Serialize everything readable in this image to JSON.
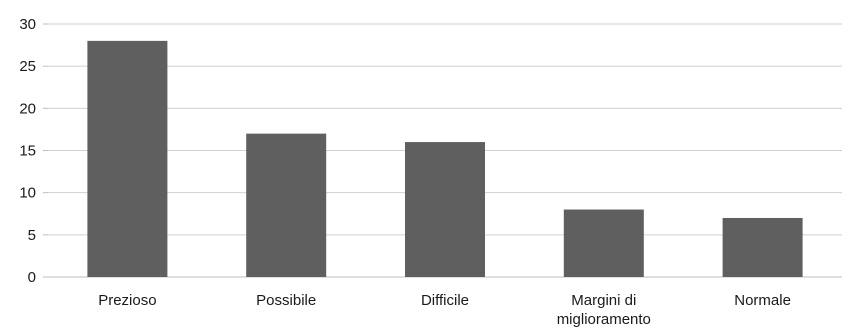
{
  "chart_data": {
    "type": "bar",
    "categories": [
      "Prezioso",
      "Possibile",
      "Difficile",
      "Margini di miglioramento",
      "Normale"
    ],
    "category_label_lines": [
      [
        "Prezioso"
      ],
      [
        "Possibile"
      ],
      [
        "Difficile"
      ],
      [
        "Margini di",
        "miglioramento"
      ],
      [
        "Normale"
      ]
    ],
    "values": [
      28,
      17,
      16,
      8,
      7
    ],
    "title": "",
    "xlabel": "",
    "ylabel": "",
    "ylim": [
      0,
      30
    ],
    "yticks": [
      0,
      5,
      10,
      15,
      20,
      25,
      30
    ],
    "grid": true,
    "legend": "none",
    "bar_color": "#5f5f5f"
  }
}
